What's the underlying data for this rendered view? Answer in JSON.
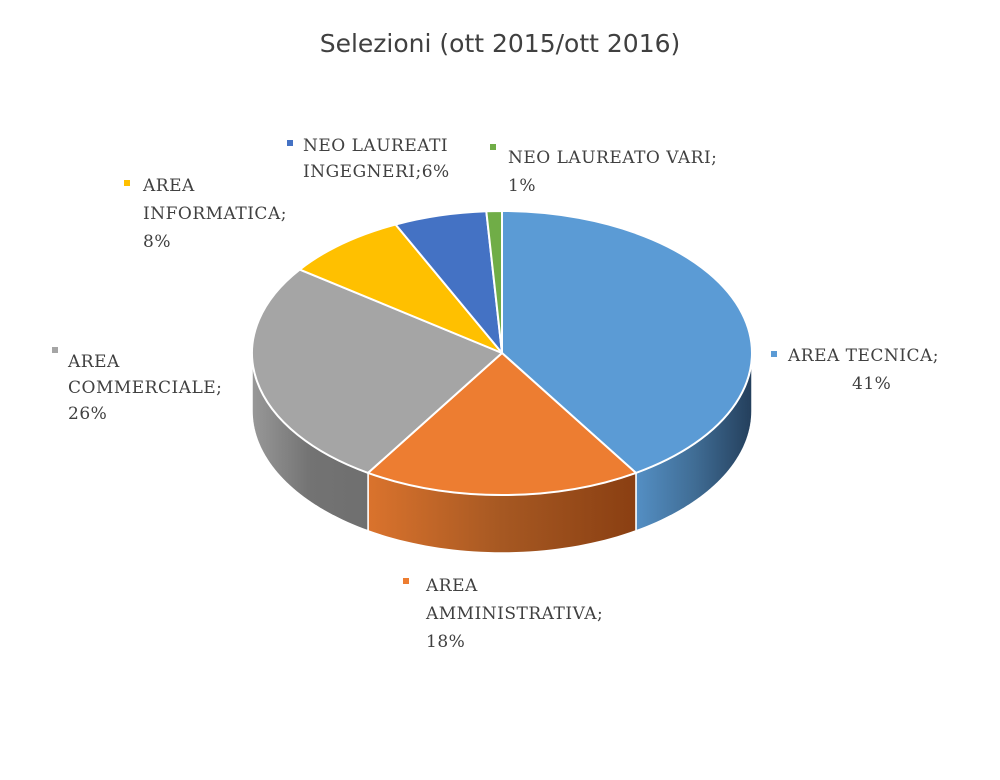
{
  "chart_data": {
    "type": "pie",
    "title": "Selezioni (ott 2015/ott 2016)",
    "slices": [
      {
        "name": "AREA TECNICA",
        "value": 41,
        "percent_label": "41%",
        "color": "#5b9bd5",
        "side_color": "#243f5c",
        "label_lines": [
          "AREA TECNICA;",
          "41%"
        ]
      },
      {
        "name": "AREA AMMINISTRATIVA",
        "value": 18,
        "percent_label": "18%",
        "color": "#ed7d31",
        "side_color": "#8a3f12",
        "label_lines": [
          "AREA",
          "AMMINISTRATIVA;",
          "18%"
        ]
      },
      {
        "name": "AREA COMMERCIALE",
        "value": 26,
        "percent_label": "26%",
        "color": "#a5a5a5",
        "side_color": "#6f6f6f",
        "label_lines": [
          "AREA",
          "COMMERCIALE;",
          "26%"
        ]
      },
      {
        "name": "AREA INFORMATICA",
        "value": 8,
        "percent_label": "8%",
        "color": "#ffc000",
        "side_color": "#9c7500",
        "label_lines": [
          "AREA",
          "INFORMATICA;",
          "8%"
        ]
      },
      {
        "name": "NEO LAUREATI INGEGNERI",
        "value": 6,
        "percent_label": "6%",
        "color": "#4472c4",
        "side_color": "#28437a",
        "label_lines": [
          "NEO LAUREATI",
          "INGEGNERI;6%"
        ]
      },
      {
        "name": "NEO LAUREATO VARI",
        "value": 1,
        "percent_label": "1%",
        "color": "#70ad47",
        "side_color": "#40662a",
        "label_lines": [
          "NEO LAUREATO VARI;",
          "1%"
        ]
      }
    ],
    "start_angle_deg": 0,
    "direction": "clockwise",
    "style": "3d-pie",
    "legend": "none"
  }
}
